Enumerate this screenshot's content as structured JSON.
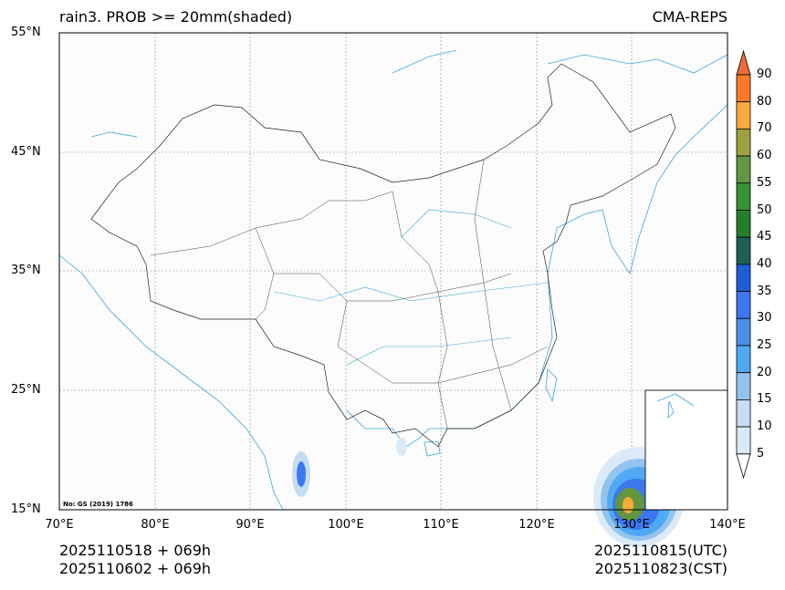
{
  "title_left": "rain3. PROB >= 20mm(shaded)",
  "title_right": "CMA-REPS",
  "lat_labels": [
    "55°N",
    "45°N",
    "35°N",
    "25°N",
    "15°N"
  ],
  "lon_labels": [
    "70°E",
    "80°E",
    "90°E",
    "100°E",
    "110°E",
    "120°E",
    "130°E",
    "140°E"
  ],
  "note": "No: GS (2019) 1786",
  "bottom_left": [
    "2025110518  +  069h",
    "2025110602  +  069h"
  ],
  "bottom_right": [
    "2025110815(UTC)",
    "2025110823(CST)"
  ],
  "colorbar": {
    "labels": [
      "90",
      "80",
      "70",
      "60",
      "55",
      "50",
      "45",
      "40",
      "35",
      "30",
      "25",
      "20",
      "15",
      "10",
      "5"
    ],
    "colors": [
      "#fb7a2a",
      "#fbaa3c",
      "#9ea040",
      "#629640",
      "#359235",
      "#247f2b",
      "#1e6055",
      "#1f5fd6",
      "#3b78f0",
      "#4a90e8",
      "#4fa9f5",
      "#94c4ee",
      "#c4dcf4",
      "#dbeaf8"
    ],
    "over_color": "#ee6a3a",
    "under_color": "#ffffff"
  },
  "chart_data": {
    "type": "heatmap",
    "title": "rain3. PROB >= 20mm(shaded)",
    "xlim": [
      70,
      140
    ],
    "ylim": [
      15,
      55
    ],
    "levels": [
      5,
      10,
      15,
      20,
      25,
      30,
      35,
      40,
      45,
      50,
      55,
      60,
      70,
      80,
      90
    ]
  }
}
